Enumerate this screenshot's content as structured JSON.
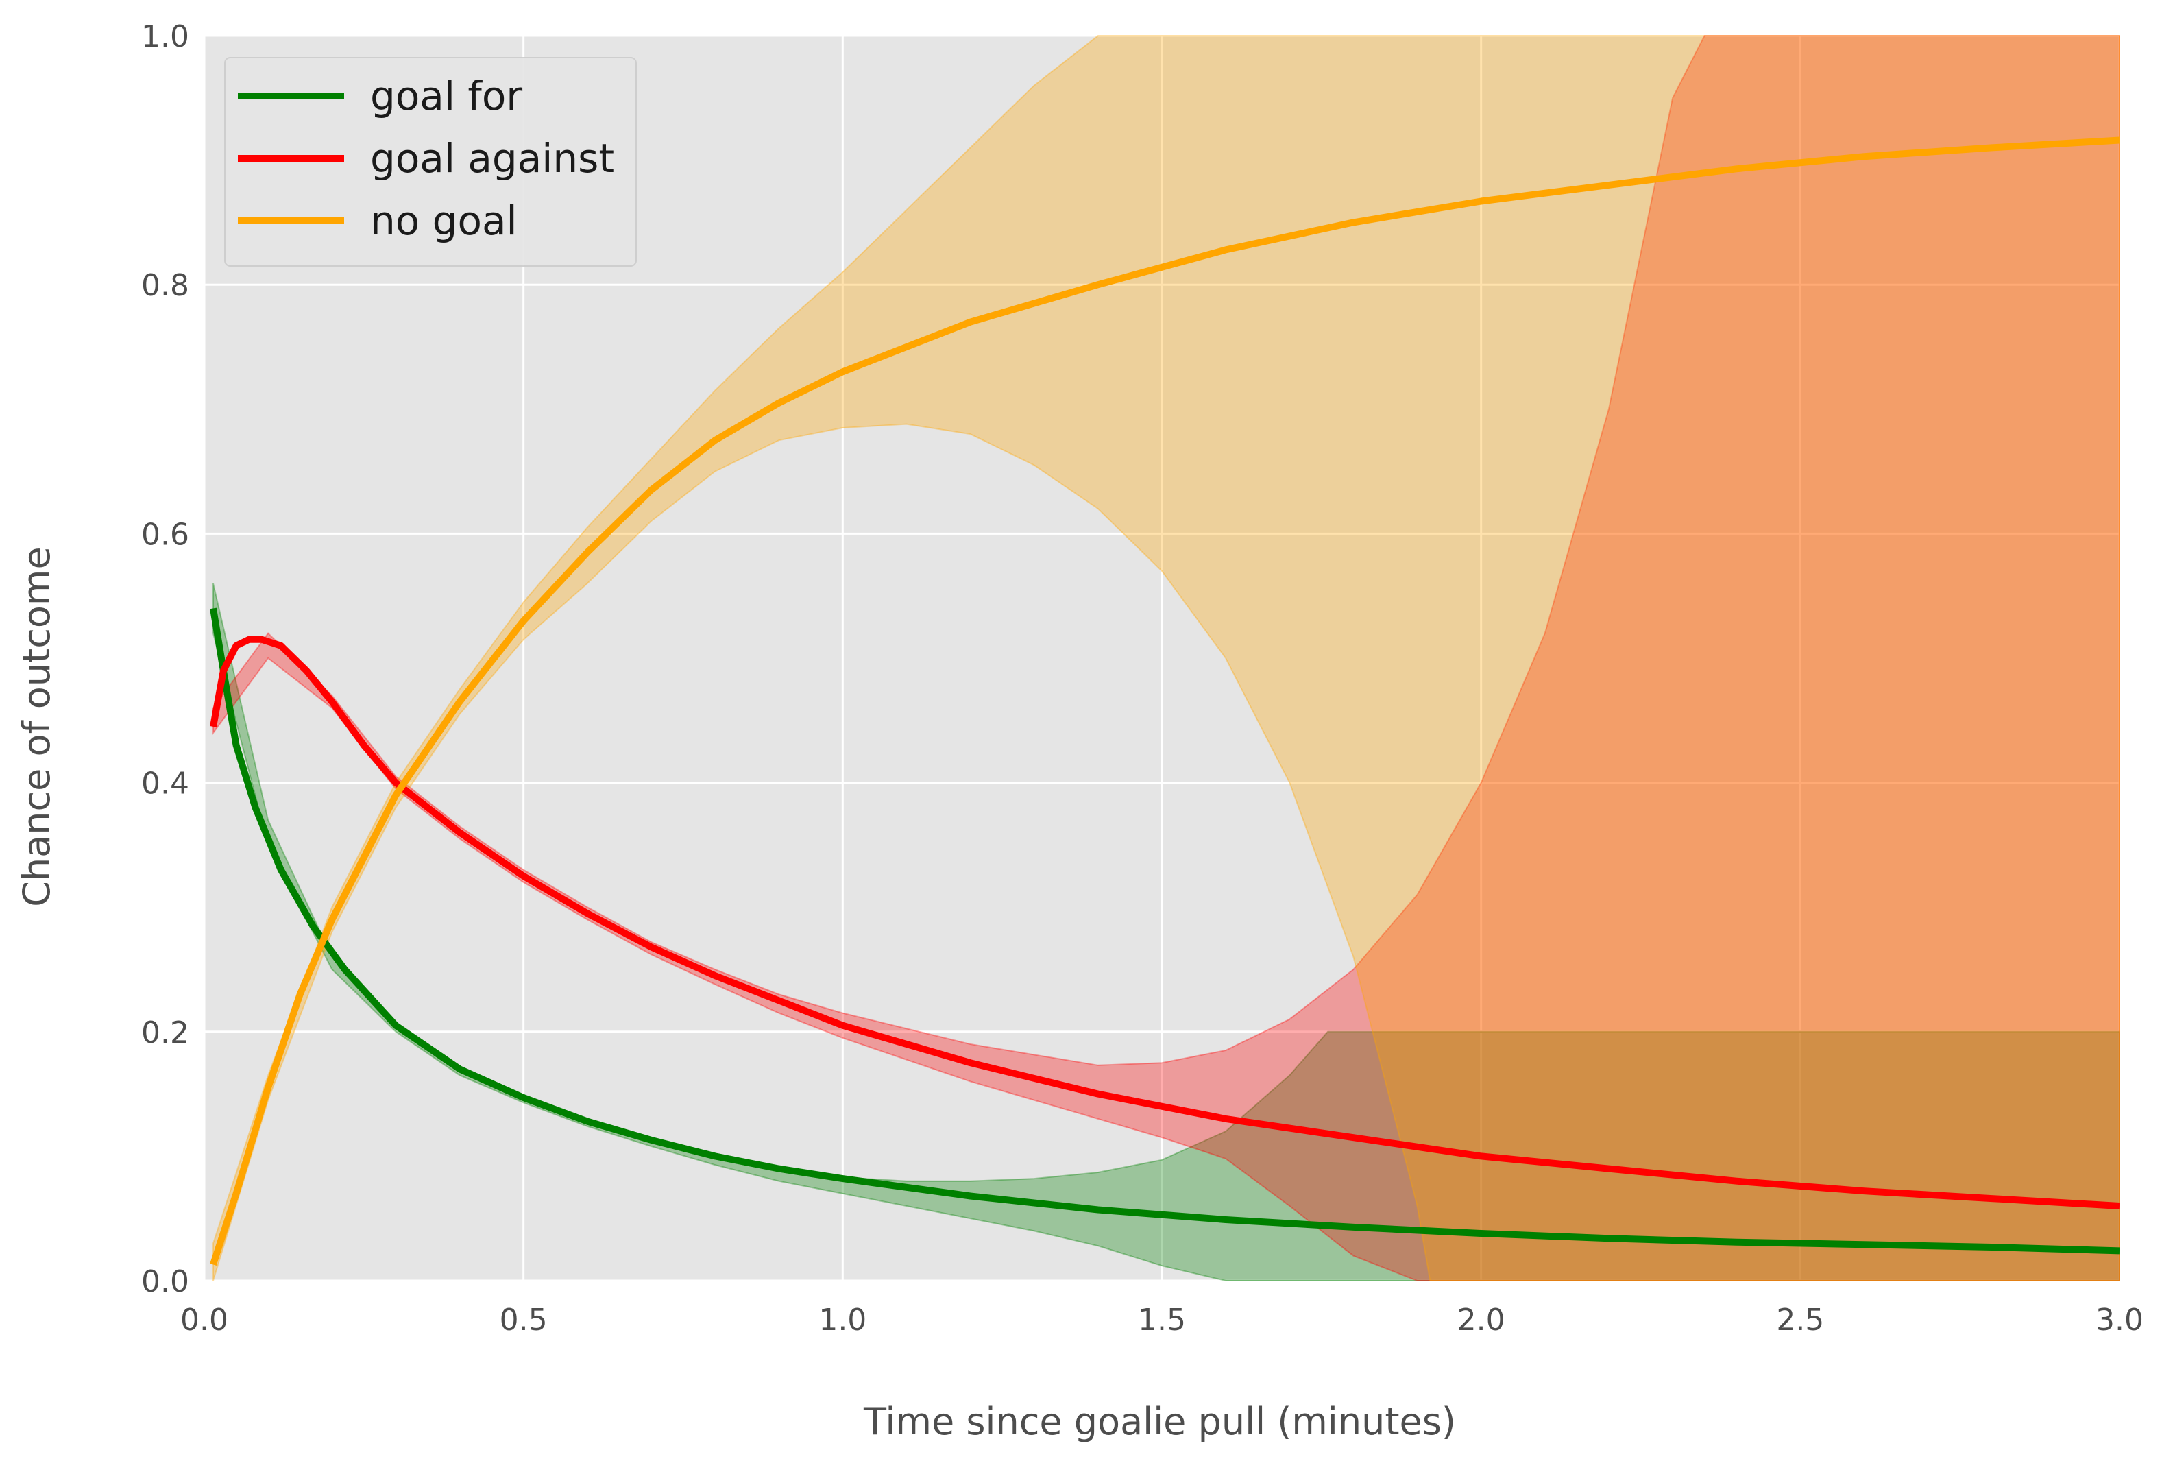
{
  "chart_data": {
    "type": "line",
    "xlabel": "Time since goalie pull (minutes)",
    "ylabel": "Chance of outcome",
    "xlim": [
      0.0,
      3.0
    ],
    "ylim": [
      0.0,
      1.0
    ],
    "x_ticks": [
      "0.0",
      "0.5",
      "1.0",
      "1.5",
      "2.0",
      "2.5",
      "3.0"
    ],
    "y_ticks": [
      "0.0",
      "0.2",
      "0.4",
      "0.6",
      "0.8",
      "1.0"
    ],
    "grid": true,
    "background": "#e5e5e5",
    "legend_position": "top-left",
    "series": [
      {
        "name": "goal for",
        "color": "#008000",
        "x": [
          0.014,
          0.03,
          0.05,
          0.08,
          0.12,
          0.17,
          0.22,
          0.3,
          0.4,
          0.5,
          0.6,
          0.7,
          0.8,
          0.9,
          1.0,
          1.2,
          1.4,
          1.6,
          1.8,
          2.0,
          2.2,
          2.4,
          2.6,
          2.8,
          3.0
        ],
        "y": [
          0.54,
          0.49,
          0.43,
          0.38,
          0.33,
          0.285,
          0.25,
          0.205,
          0.17,
          0.147,
          0.128,
          0.113,
          0.1,
          0.09,
          0.082,
          0.068,
          0.057,
          0.049,
          0.043,
          0.038,
          0.034,
          0.031,
          0.029,
          0.027,
          0.024
        ],
        "band_x": [
          0.014,
          0.1,
          0.2,
          0.3,
          0.4,
          0.5,
          0.6,
          0.7,
          0.8,
          0.9,
          1.0,
          1.1,
          1.2,
          1.3,
          1.4,
          1.5,
          1.6,
          1.7,
          1.76,
          1.8,
          2.0,
          2.2,
          2.4,
          2.6,
          2.8,
          3.0
        ],
        "band_upper": [
          0.56,
          0.37,
          0.26,
          0.205,
          0.17,
          0.147,
          0.128,
          0.113,
          0.1,
          0.09,
          0.083,
          0.08,
          0.08,
          0.082,
          0.087,
          0.097,
          0.12,
          0.165,
          0.2,
          0.2,
          0.2,
          0.2,
          0.2,
          0.2,
          0.2,
          0.2
        ],
        "band_lower": [
          0.52,
          0.35,
          0.25,
          0.2,
          0.165,
          0.143,
          0.124,
          0.108,
          0.093,
          0.08,
          0.07,
          0.06,
          0.05,
          0.04,
          0.028,
          0.012,
          0.0,
          0.0,
          0.0,
          0.0,
          0.0,
          0.0,
          0.0,
          0.0,
          0.0,
          0.0
        ]
      },
      {
        "name": "goal against",
        "color": "#ff0000",
        "x": [
          0.014,
          0.03,
          0.05,
          0.07,
          0.09,
          0.12,
          0.16,
          0.2,
          0.25,
          0.3,
          0.4,
          0.5,
          0.6,
          0.7,
          0.8,
          0.9,
          1.0,
          1.2,
          1.4,
          1.6,
          1.8,
          2.0,
          2.2,
          2.4,
          2.6,
          2.8,
          3.0
        ],
        "y": [
          0.445,
          0.49,
          0.51,
          0.515,
          0.515,
          0.51,
          0.49,
          0.465,
          0.43,
          0.4,
          0.36,
          0.325,
          0.295,
          0.268,
          0.245,
          0.225,
          0.205,
          0.175,
          0.15,
          0.13,
          0.115,
          0.1,
          0.09,
          0.08,
          0.072,
          0.066,
          0.06
        ],
        "band_x": [
          0.014,
          0.1,
          0.2,
          0.3,
          0.4,
          0.5,
          0.6,
          0.7,
          0.8,
          0.9,
          1.0,
          1.2,
          1.4,
          1.5,
          1.6,
          1.7,
          1.8,
          1.9,
          2.0,
          2.1,
          2.2,
          2.26,
          2.3,
          2.35,
          2.5,
          3.0
        ],
        "band_upper": [
          0.46,
          0.52,
          0.47,
          0.405,
          0.365,
          0.33,
          0.3,
          0.272,
          0.25,
          0.23,
          0.215,
          0.19,
          0.173,
          0.175,
          0.185,
          0.21,
          0.25,
          0.31,
          0.4,
          0.52,
          0.7,
          0.85,
          0.95,
          1.0,
          1.0,
          1.0
        ],
        "band_lower": [
          0.44,
          0.5,
          0.46,
          0.395,
          0.355,
          0.32,
          0.29,
          0.262,
          0.238,
          0.215,
          0.195,
          0.16,
          0.13,
          0.115,
          0.098,
          0.06,
          0.02,
          0.0,
          0.0,
          0.0,
          0.0,
          0.0,
          0.0,
          0.0,
          0.0,
          0.0
        ]
      },
      {
        "name": "no goal",
        "color": "#ffa500",
        "x": [
          0.014,
          0.05,
          0.1,
          0.15,
          0.2,
          0.3,
          0.4,
          0.5,
          0.6,
          0.7,
          0.8,
          0.9,
          1.0,
          1.2,
          1.4,
          1.6,
          1.8,
          2.0,
          2.2,
          2.4,
          2.6,
          2.8,
          3.0
        ],
        "y": [
          0.013,
          0.07,
          0.155,
          0.23,
          0.29,
          0.39,
          0.465,
          0.53,
          0.585,
          0.635,
          0.675,
          0.705,
          0.73,
          0.77,
          0.8,
          0.828,
          0.85,
          0.867,
          0.88,
          0.893,
          0.903,
          0.91,
          0.916
        ],
        "band_x": [
          0.014,
          0.1,
          0.2,
          0.3,
          0.4,
          0.5,
          0.6,
          0.7,
          0.8,
          0.9,
          1.0,
          1.1,
          1.2,
          1.3,
          1.4,
          1.5,
          1.6,
          1.7,
          1.8,
          1.9,
          1.92,
          2.0,
          2.5,
          3.0
        ],
        "band_upper": [
          0.03,
          0.165,
          0.3,
          0.4,
          0.475,
          0.545,
          0.605,
          0.66,
          0.715,
          0.765,
          0.81,
          0.86,
          0.91,
          0.96,
          1.0,
          1.0,
          1.0,
          1.0,
          1.0,
          1.0,
          1.0,
          1.0,
          1.0,
          1.0
        ],
        "band_lower": [
          0.0,
          0.145,
          0.28,
          0.38,
          0.455,
          0.515,
          0.56,
          0.61,
          0.65,
          0.675,
          0.685,
          0.688,
          0.68,
          0.655,
          0.62,
          0.57,
          0.5,
          0.4,
          0.26,
          0.06,
          0.0,
          0.0,
          0.0,
          0.0
        ]
      }
    ]
  }
}
